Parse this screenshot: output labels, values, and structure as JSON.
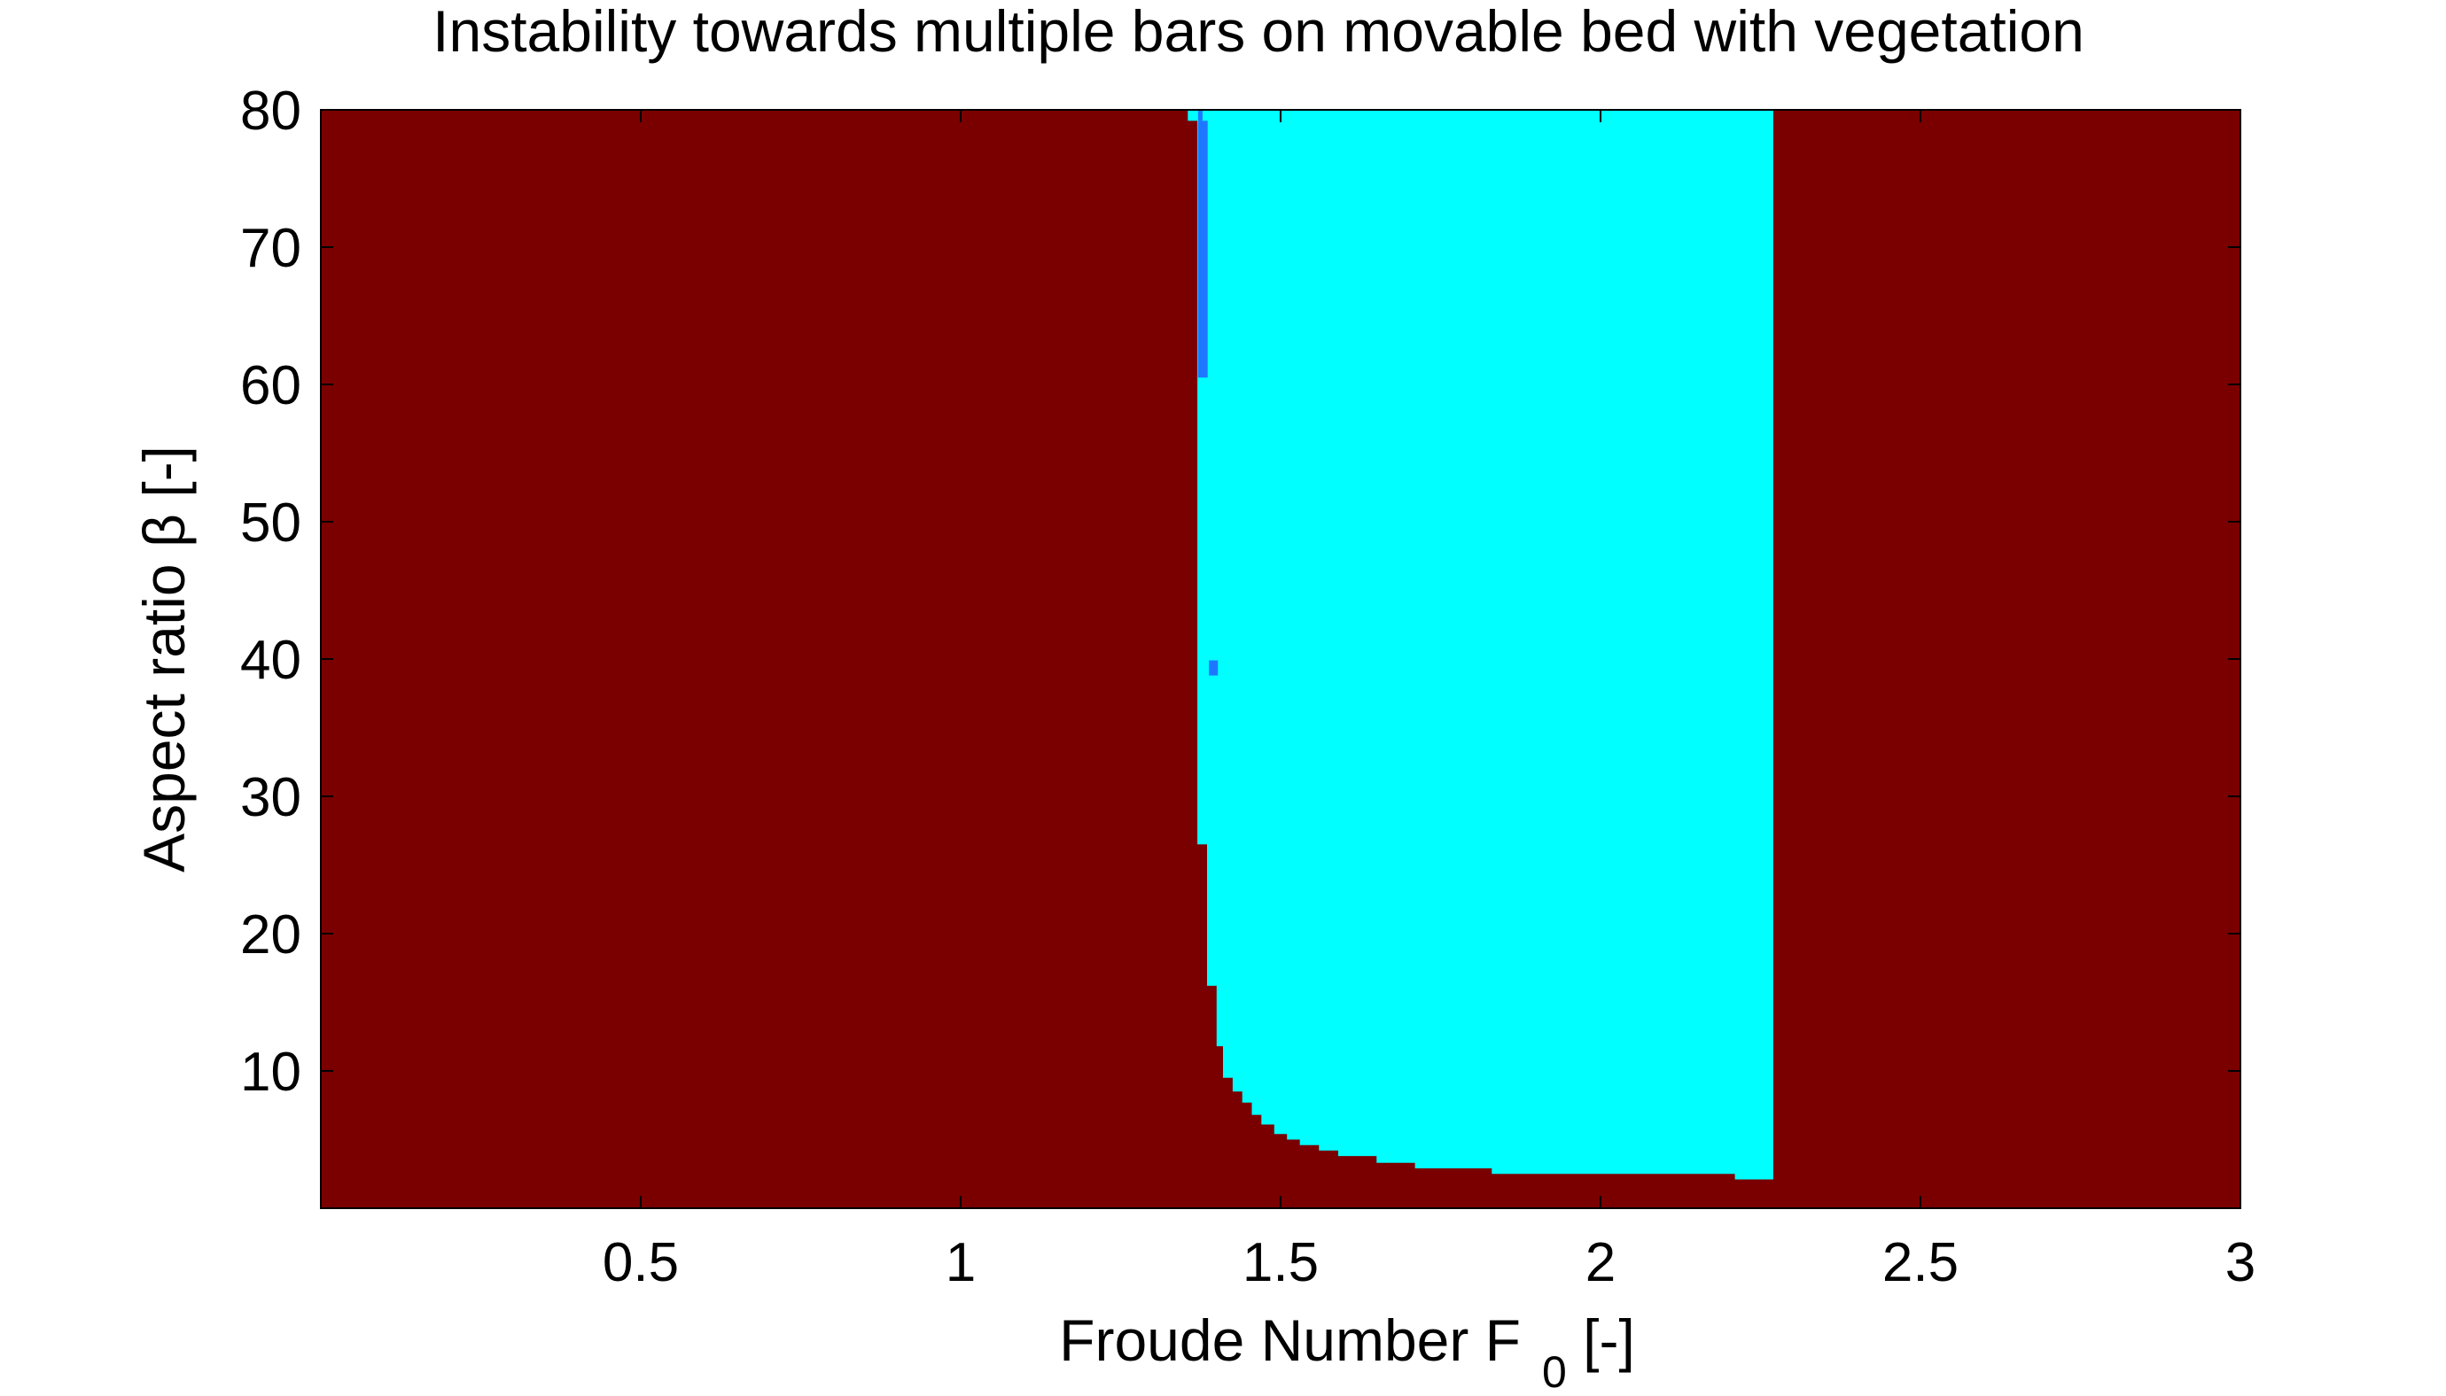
{
  "chart_data": {
    "type": "heatmap",
    "title": "Instability towards multiple bars on movable bed with vegetation",
    "xlabel": "Froude Number  F",
    "xlabel_subscript": "0",
    "xlabel_suffix": " [-]",
    "ylabel": "Aspect ratio   β [-]",
    "xlim": [
      0.0,
      3.0
    ],
    "ylim": [
      0.0,
      80.0
    ],
    "xticks": [
      0.5,
      1,
      1.5,
      2,
      2.5,
      3
    ],
    "xtick_labels": [
      "0.5",
      "1",
      "1.5",
      "2",
      "2.5",
      "3"
    ],
    "yticks": [
      10,
      20,
      30,
      40,
      50,
      60,
      70,
      80
    ],
    "ytick_labels": [
      "10",
      "20",
      "30",
      "40",
      "50",
      "60",
      "70",
      "80"
    ],
    "grid": false,
    "legend": "none",
    "colors": {
      "background": "#7a0000",
      "unstable_region": "#00ffff",
      "secondary_mode": "#1e78ff"
    },
    "unstable_region_boundary": [
      {
        "F": 1.37,
        "beta": 80.0
      },
      {
        "F": 1.37,
        "beta": 26.5
      },
      {
        "F": 1.385,
        "beta": 26.5
      },
      {
        "F": 1.385,
        "beta": 16.2
      },
      {
        "F": 1.4,
        "beta": 16.2
      },
      {
        "F": 1.4,
        "beta": 11.8
      },
      {
        "F": 1.41,
        "beta": 11.8
      },
      {
        "F": 1.41,
        "beta": 9.5
      },
      {
        "F": 1.425,
        "beta": 9.5
      },
      {
        "F": 1.425,
        "beta": 8.5
      },
      {
        "F": 1.44,
        "beta": 8.5
      },
      {
        "F": 1.44,
        "beta": 7.7
      },
      {
        "F": 1.455,
        "beta": 7.7
      },
      {
        "F": 1.455,
        "beta": 6.8
      },
      {
        "F": 1.47,
        "beta": 6.8
      },
      {
        "F": 1.47,
        "beta": 6.1
      },
      {
        "F": 1.49,
        "beta": 6.1
      },
      {
        "F": 1.49,
        "beta": 5.4
      },
      {
        "F": 1.51,
        "beta": 5.4
      },
      {
        "F": 1.51,
        "beta": 5.0
      },
      {
        "F": 1.53,
        "beta": 5.0
      },
      {
        "F": 1.53,
        "beta": 4.6
      },
      {
        "F": 1.56,
        "beta": 4.6
      },
      {
        "F": 1.56,
        "beta": 4.2
      },
      {
        "F": 1.59,
        "beta": 4.2
      },
      {
        "F": 1.59,
        "beta": 3.8
      },
      {
        "F": 1.65,
        "beta": 3.8
      },
      {
        "F": 1.65,
        "beta": 3.3
      },
      {
        "F": 1.71,
        "beta": 3.3
      },
      {
        "F": 1.71,
        "beta": 2.9
      },
      {
        "F": 1.83,
        "beta": 2.9
      },
      {
        "F": 1.83,
        "beta": 2.5
      },
      {
        "F": 2.21,
        "beta": 2.5
      },
      {
        "F": 2.21,
        "beta": 2.1
      },
      {
        "F": 2.27,
        "beta": 2.1
      },
      {
        "F": 2.27,
        "beta": 80.0
      }
    ],
    "secondary_mode_regions": [
      {
        "F_min": 1.371,
        "F_max": 1.386,
        "beta_min": 60.5,
        "beta_max": 79.2
      },
      {
        "F_min": 1.371,
        "F_max": 1.378,
        "beta_min": 79.2,
        "beta_max": 80.0
      },
      {
        "F_min": 1.388,
        "F_max": 1.402,
        "beta_min": 38.8,
        "beta_max": 39.9
      }
    ],
    "cyan_cap": {
      "F_min": 1.355,
      "F_max": 1.371,
      "beta_min": 79.2,
      "beta_max": 80.0
    }
  }
}
